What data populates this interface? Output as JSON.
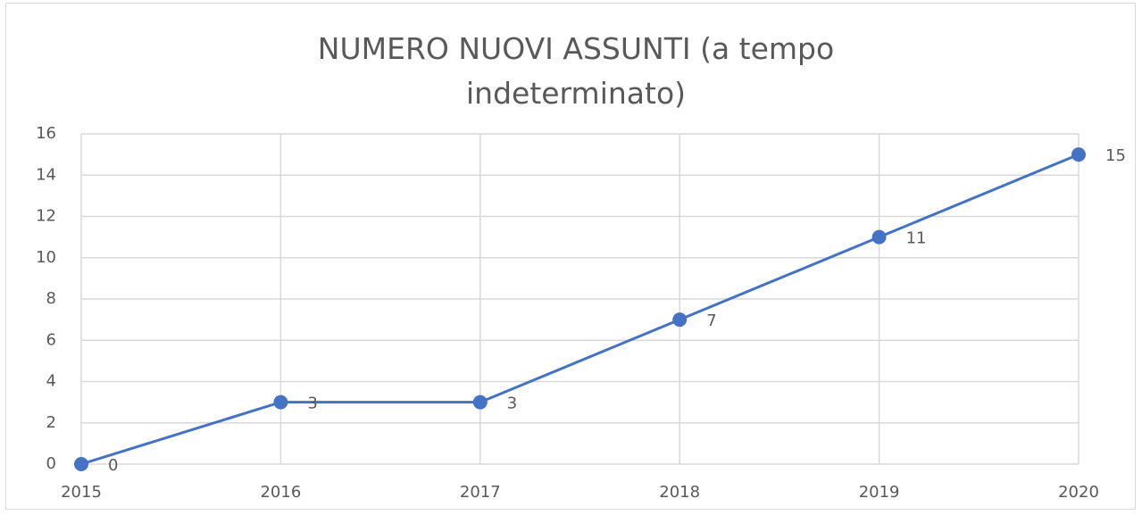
{
  "chart_data": {
    "type": "line",
    "title": "NUMERO NUOVI ASSUNTI (a tempo indeterminato)",
    "x": [
      2015,
      2016,
      2017,
      2018,
      2019,
      2020
    ],
    "values": [
      0,
      3,
      3,
      7,
      11,
      15
    ],
    "color": "#4472c4",
    "xlim": [
      2015,
      2020
    ],
    "xticks": [
      2015,
      2016,
      2017,
      2018,
      2019,
      2020
    ],
    "ylim": [
      0,
      16
    ],
    "yticks": [
      0,
      2,
      4,
      6,
      8,
      10,
      12,
      14,
      16
    ],
    "grid": true,
    "data_labels": true
  }
}
